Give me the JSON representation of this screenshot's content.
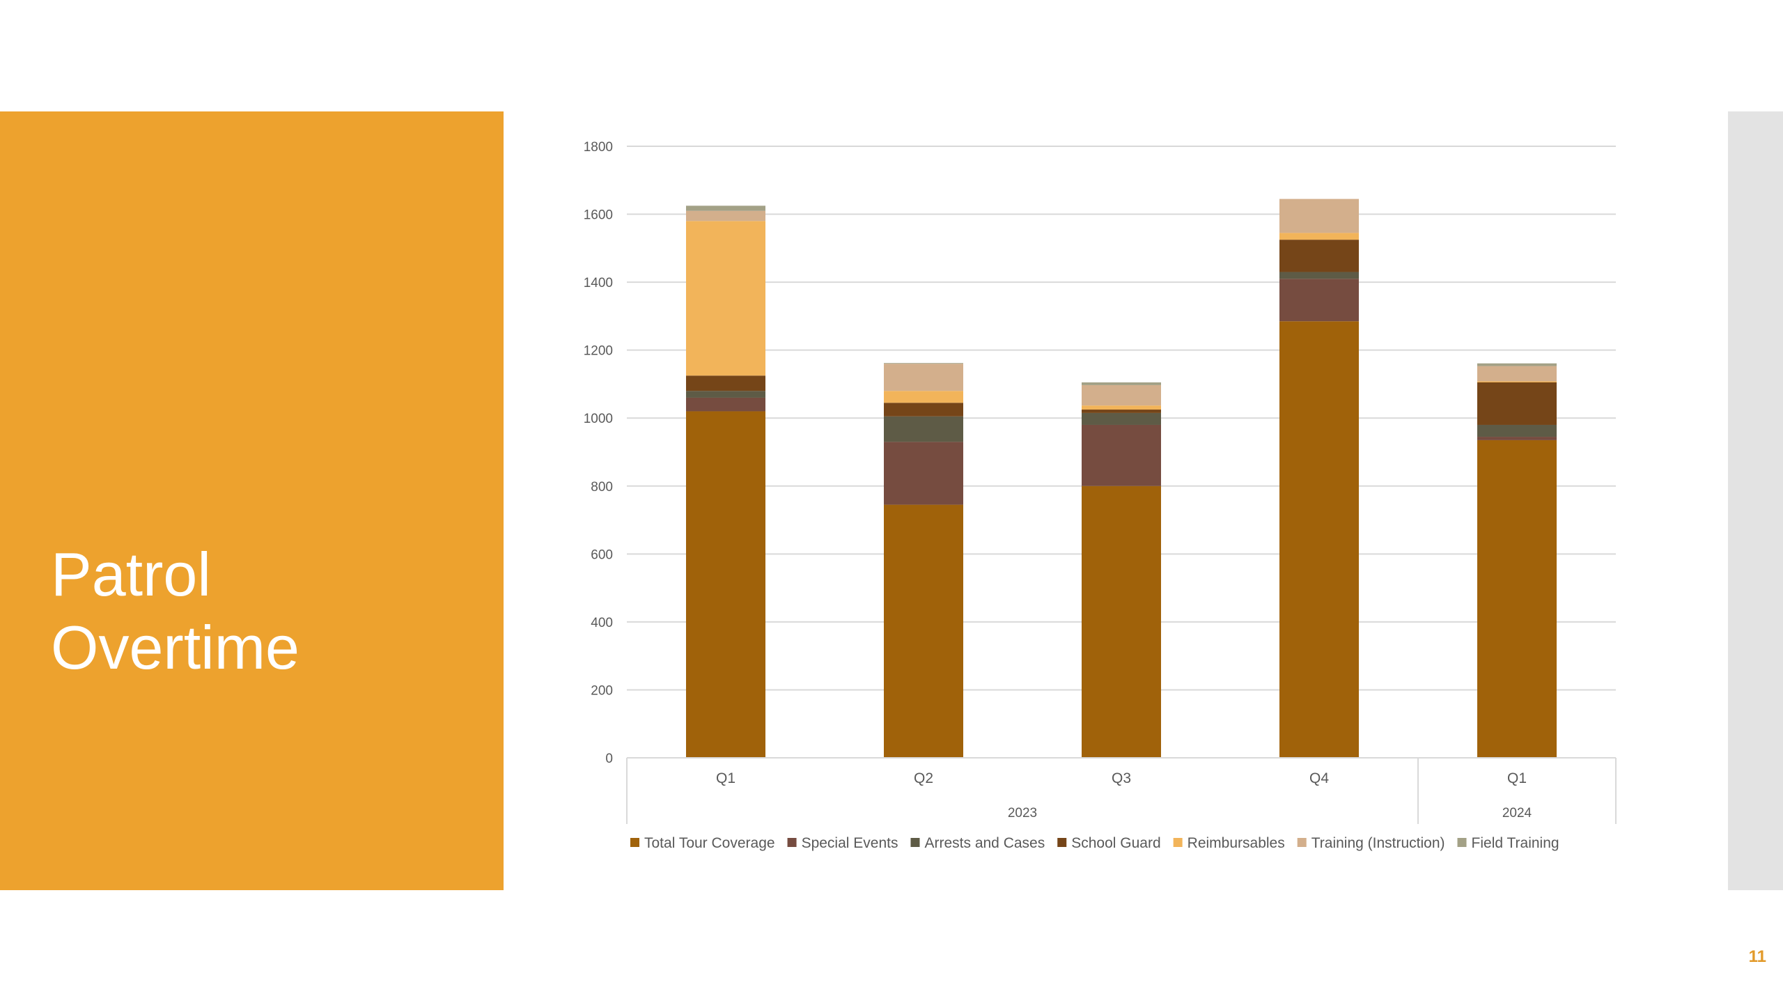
{
  "slide": {
    "title_line1": "Patrol",
    "title_line2": "Overtime",
    "page_number": "11",
    "accent_color": "#EDA22E"
  },
  "chart_data": {
    "type": "bar",
    "stacked": true,
    "categories": [
      "Q1",
      "Q2",
      "Q3",
      "Q4",
      "Q1"
    ],
    "groups": [
      {
        "label": "2023",
        "categories": [
          "Q1",
          "Q2",
          "Q3",
          "Q4"
        ]
      },
      {
        "label": "2024",
        "categories": [
          "Q1"
        ]
      }
    ],
    "ylim": [
      0,
      1800
    ],
    "yticks": [
      0,
      200,
      400,
      600,
      800,
      1000,
      1200,
      1400,
      1600,
      1800
    ],
    "grid": true,
    "legend_position": "bottom",
    "series": [
      {
        "name": "Total Tour Coverage",
        "color": "#A0620A",
        "values": [
          1020,
          745,
          800,
          1285,
          935
        ]
      },
      {
        "name": "Special Events",
        "color": "#764C40",
        "values": [
          40,
          185,
          180,
          125,
          10
        ]
      },
      {
        "name": "Arrests and Cases",
        "color": "#5E5B46",
        "values": [
          20,
          75,
          35,
          20,
          35
        ]
      },
      {
        "name": "School Guard",
        "color": "#754518",
        "values": [
          45,
          40,
          10,
          95,
          125
        ]
      },
      {
        "name": "Reimbursables",
        "color": "#F2B45A",
        "values": [
          455,
          35,
          12,
          20,
          3
        ]
      },
      {
        "name": "Training (Instruction)",
        "color": "#D3AF8C",
        "values": [
          30,
          80,
          60,
          100,
          45
        ]
      },
      {
        "name": "Field Training",
        "color": "#A3A186",
        "values": [
          15,
          2,
          8,
          0,
          8
        ]
      }
    ]
  }
}
